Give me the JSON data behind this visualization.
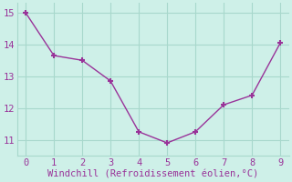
{
  "x": [
    0,
    1,
    2,
    3,
    4,
    5,
    6,
    7,
    8,
    9
  ],
  "y": [
    15.0,
    13.65,
    13.5,
    12.85,
    11.25,
    10.9,
    11.25,
    12.1,
    12.4,
    14.05
  ],
  "line_color": "#993399",
  "marker": "+",
  "marker_size": 5,
  "marker_lw": 1.5,
  "xlabel": "Windchill (Refroidissement éolien,°C)",
  "xlim": [
    -0.3,
    9.3
  ],
  "ylim": [
    10.5,
    15.3
  ],
  "yticks": [
    11,
    12,
    13,
    14,
    15
  ],
  "xticks": [
    0,
    1,
    2,
    3,
    4,
    5,
    6,
    7,
    8,
    9
  ],
  "bg_color": "#cef0e8",
  "grid_color": "#a8d8cc",
  "font_color": "#993399",
  "font_family": "monospace",
  "tick_fontsize": 7.5,
  "xlabel_fontsize": 7.5
}
